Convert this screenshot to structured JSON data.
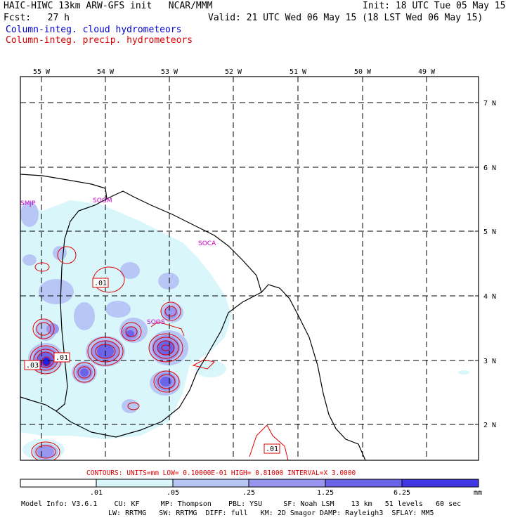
{
  "header": {
    "model_line": "HAIC-HIWC 13km ARW-GFS init   NCAR/MMM",
    "init_line": "Init: 18 UTC Tue 05 May 15",
    "fcst_line": "Fcst:   27 h",
    "valid_line": "Valid: 21 UTC Wed 06 May 15 (18 LST Wed 06 May 15)",
    "field1": "Column-integ. cloud hydrometeors",
    "field2": "Column-integ. precip. hydrometeors"
  },
  "longitude_labels": [
    "55 W",
    "54 W",
    "53 W",
    "52 W",
    "51 W",
    "50 W",
    "49 W"
  ],
  "latitude_labels": [
    "7 N",
    "6 N",
    "5 N",
    "4 N",
    "3 N",
    "2 N"
  ],
  "station_labels": [
    "SMJP",
    "SOGM",
    "SOCA",
    "SOOS"
  ],
  "contour_labels": [
    ".01",
    ".01",
    ".03",
    ".01"
  ],
  "contour_info": "CONTOURS:  UNITS=mm  LOW= 0.10000E-01  HIGH= 0.81000     INTERVAL=X  3.0000",
  "colorbar": {
    "ticks": [
      ".01",
      ".05",
      ".25",
      "1.25",
      "6.25"
    ],
    "units": "mm",
    "colors": [
      "#ffffff",
      "#d9f7fb",
      "#b8c6f5",
      "#9896ef",
      "#6b63e8",
      "#4038e4",
      "#1e1ee6"
    ]
  },
  "footer": {
    "line1": "Model Info: V3.6.1    CU: KF     MP: Thompson    PBL: YSU     SF: Noah LSM    13 km   51 levels   60 sec",
    "line2": "LW: RRTMG   SW: RRTMG  DIFF: full   KM: 2D Smagor DAMP: Rayleigh3  SFLAY: MM5"
  }
}
